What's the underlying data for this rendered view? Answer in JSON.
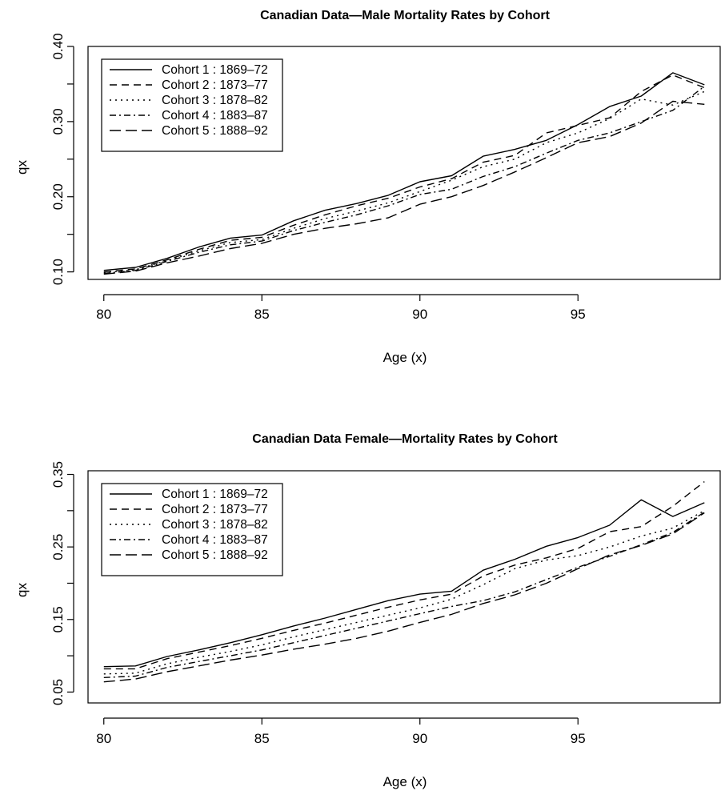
{
  "chart_data": [
    {
      "type": "line",
      "title": "Canadian Data—Male Mortality Rates by Cohort",
      "xlabel": "Age (x)",
      "ylabel": "qx",
      "xlim": [
        79.5,
        99.5
      ],
      "ylim": [
        0.09,
        0.4
      ],
      "xticks": [
        80,
        85,
        90,
        95
      ],
      "yticks": [
        "0.10",
        "0.20",
        "0.30",
        "0.40"
      ],
      "yticks_minor": [
        0.15,
        0.25,
        0.35
      ],
      "legend_position": "top-left",
      "grid": false,
      "x": [
        80,
        81,
        82,
        83,
        84,
        85,
        86,
        87,
        88,
        89,
        90,
        91,
        92,
        93,
        94,
        95,
        96,
        97,
        98,
        99
      ],
      "series": [
        {
          "name": "Cohort 1 : 1869–72",
          "dash": "",
          "values": [
            0.102,
            0.106,
            0.118,
            0.133,
            0.145,
            0.149,
            0.168,
            0.182,
            0.191,
            0.202,
            0.22,
            0.228,
            0.254,
            0.263,
            0.275,
            0.296,
            0.32,
            0.334,
            0.365,
            0.349
          ]
        },
        {
          "name": "Cohort 2 : 1873–77",
          "dash": "9,6",
          "values": [
            0.1,
            0.104,
            0.116,
            0.13,
            0.142,
            0.146,
            0.162,
            0.176,
            0.188,
            0.198,
            0.213,
            0.224,
            0.246,
            0.255,
            0.285,
            0.295,
            0.305,
            0.34,
            0.362,
            0.345
          ]
        },
        {
          "name": "Cohort 3 : 1878–82",
          "dash": "2,5",
          "values": [
            0.099,
            0.103,
            0.115,
            0.128,
            0.139,
            0.143,
            0.158,
            0.171,
            0.181,
            0.192,
            0.207,
            0.222,
            0.24,
            0.25,
            0.272,
            0.285,
            0.304,
            0.33,
            0.322,
            0.34
          ]
        },
        {
          "name": "Cohort 4 : 1883–87",
          "dash": "8,4,2,4",
          "values": [
            0.098,
            0.102,
            0.114,
            0.126,
            0.136,
            0.141,
            0.155,
            0.166,
            0.176,
            0.188,
            0.203,
            0.21,
            0.227,
            0.24,
            0.258,
            0.275,
            0.285,
            0.3,
            0.315,
            0.347
          ]
        },
        {
          "name": "Cohort 5 : 1888–92",
          "dash": "14,6",
          "values": [
            0.097,
            0.101,
            0.112,
            0.121,
            0.131,
            0.138,
            0.15,
            0.158,
            0.164,
            0.172,
            0.19,
            0.2,
            0.215,
            0.233,
            0.252,
            0.272,
            0.28,
            0.298,
            0.327,
            0.323
          ]
        }
      ]
    },
    {
      "type": "line",
      "title": "Canadian Data  Female—Mortality Rates by Cohort",
      "xlabel": "Age (x)",
      "ylabel": "qx",
      "xlim": [
        79.5,
        99.5
      ],
      "ylim": [
        0.035,
        0.355
      ],
      "xticks": [
        80,
        85,
        90,
        95
      ],
      "yticks": [
        "0.05",
        "0.15",
        "0.25",
        "0.35"
      ],
      "yticks_minor": [
        0.1,
        0.2,
        0.3
      ],
      "legend_position": "top-left",
      "grid": false,
      "x": [
        80,
        81,
        82,
        83,
        84,
        85,
        86,
        87,
        88,
        89,
        90,
        91,
        92,
        93,
        94,
        95,
        96,
        97,
        98,
        99
      ],
      "series": [
        {
          "name": "Cohort 1 : 1869–72",
          "dash": "",
          "values": [
            0.085,
            0.086,
            0.099,
            0.108,
            0.118,
            0.129,
            0.141,
            0.152,
            0.164,
            0.176,
            0.185,
            0.189,
            0.218,
            0.233,
            0.251,
            0.263,
            0.28,
            0.315,
            0.292,
            0.311
          ]
        },
        {
          "name": "Cohort 2 : 1873–77",
          "dash": "9,6",
          "values": [
            0.082,
            0.082,
            0.096,
            0.105,
            0.114,
            0.124,
            0.135,
            0.145,
            0.156,
            0.167,
            0.177,
            0.185,
            0.21,
            0.225,
            0.235,
            0.248,
            0.271,
            0.278,
            0.306,
            0.34
          ]
        },
        {
          "name": "Cohort 3 : 1878–82",
          "dash": "2,5",
          "values": [
            0.075,
            0.076,
            0.089,
            0.098,
            0.106,
            0.115,
            0.126,
            0.136,
            0.146,
            0.156,
            0.166,
            0.178,
            0.198,
            0.22,
            0.232,
            0.238,
            0.25,
            0.265,
            0.276,
            0.3
          ]
        },
        {
          "name": "Cohort 4 : 1883–87",
          "dash": "8,4,2,4",
          "values": [
            0.07,
            0.072,
            0.084,
            0.092,
            0.1,
            0.108,
            0.118,
            0.128,
            0.138,
            0.148,
            0.158,
            0.168,
            0.176,
            0.188,
            0.205,
            0.222,
            0.237,
            0.253,
            0.27,
            0.298
          ]
        },
        {
          "name": "Cohort 5 : 1888–92",
          "dash": "14,6",
          "values": [
            0.064,
            0.068,
            0.078,
            0.086,
            0.094,
            0.101,
            0.109,
            0.116,
            0.124,
            0.134,
            0.146,
            0.157,
            0.172,
            0.184,
            0.2,
            0.22,
            0.239,
            0.252,
            0.268,
            0.297
          ]
        }
      ]
    }
  ]
}
